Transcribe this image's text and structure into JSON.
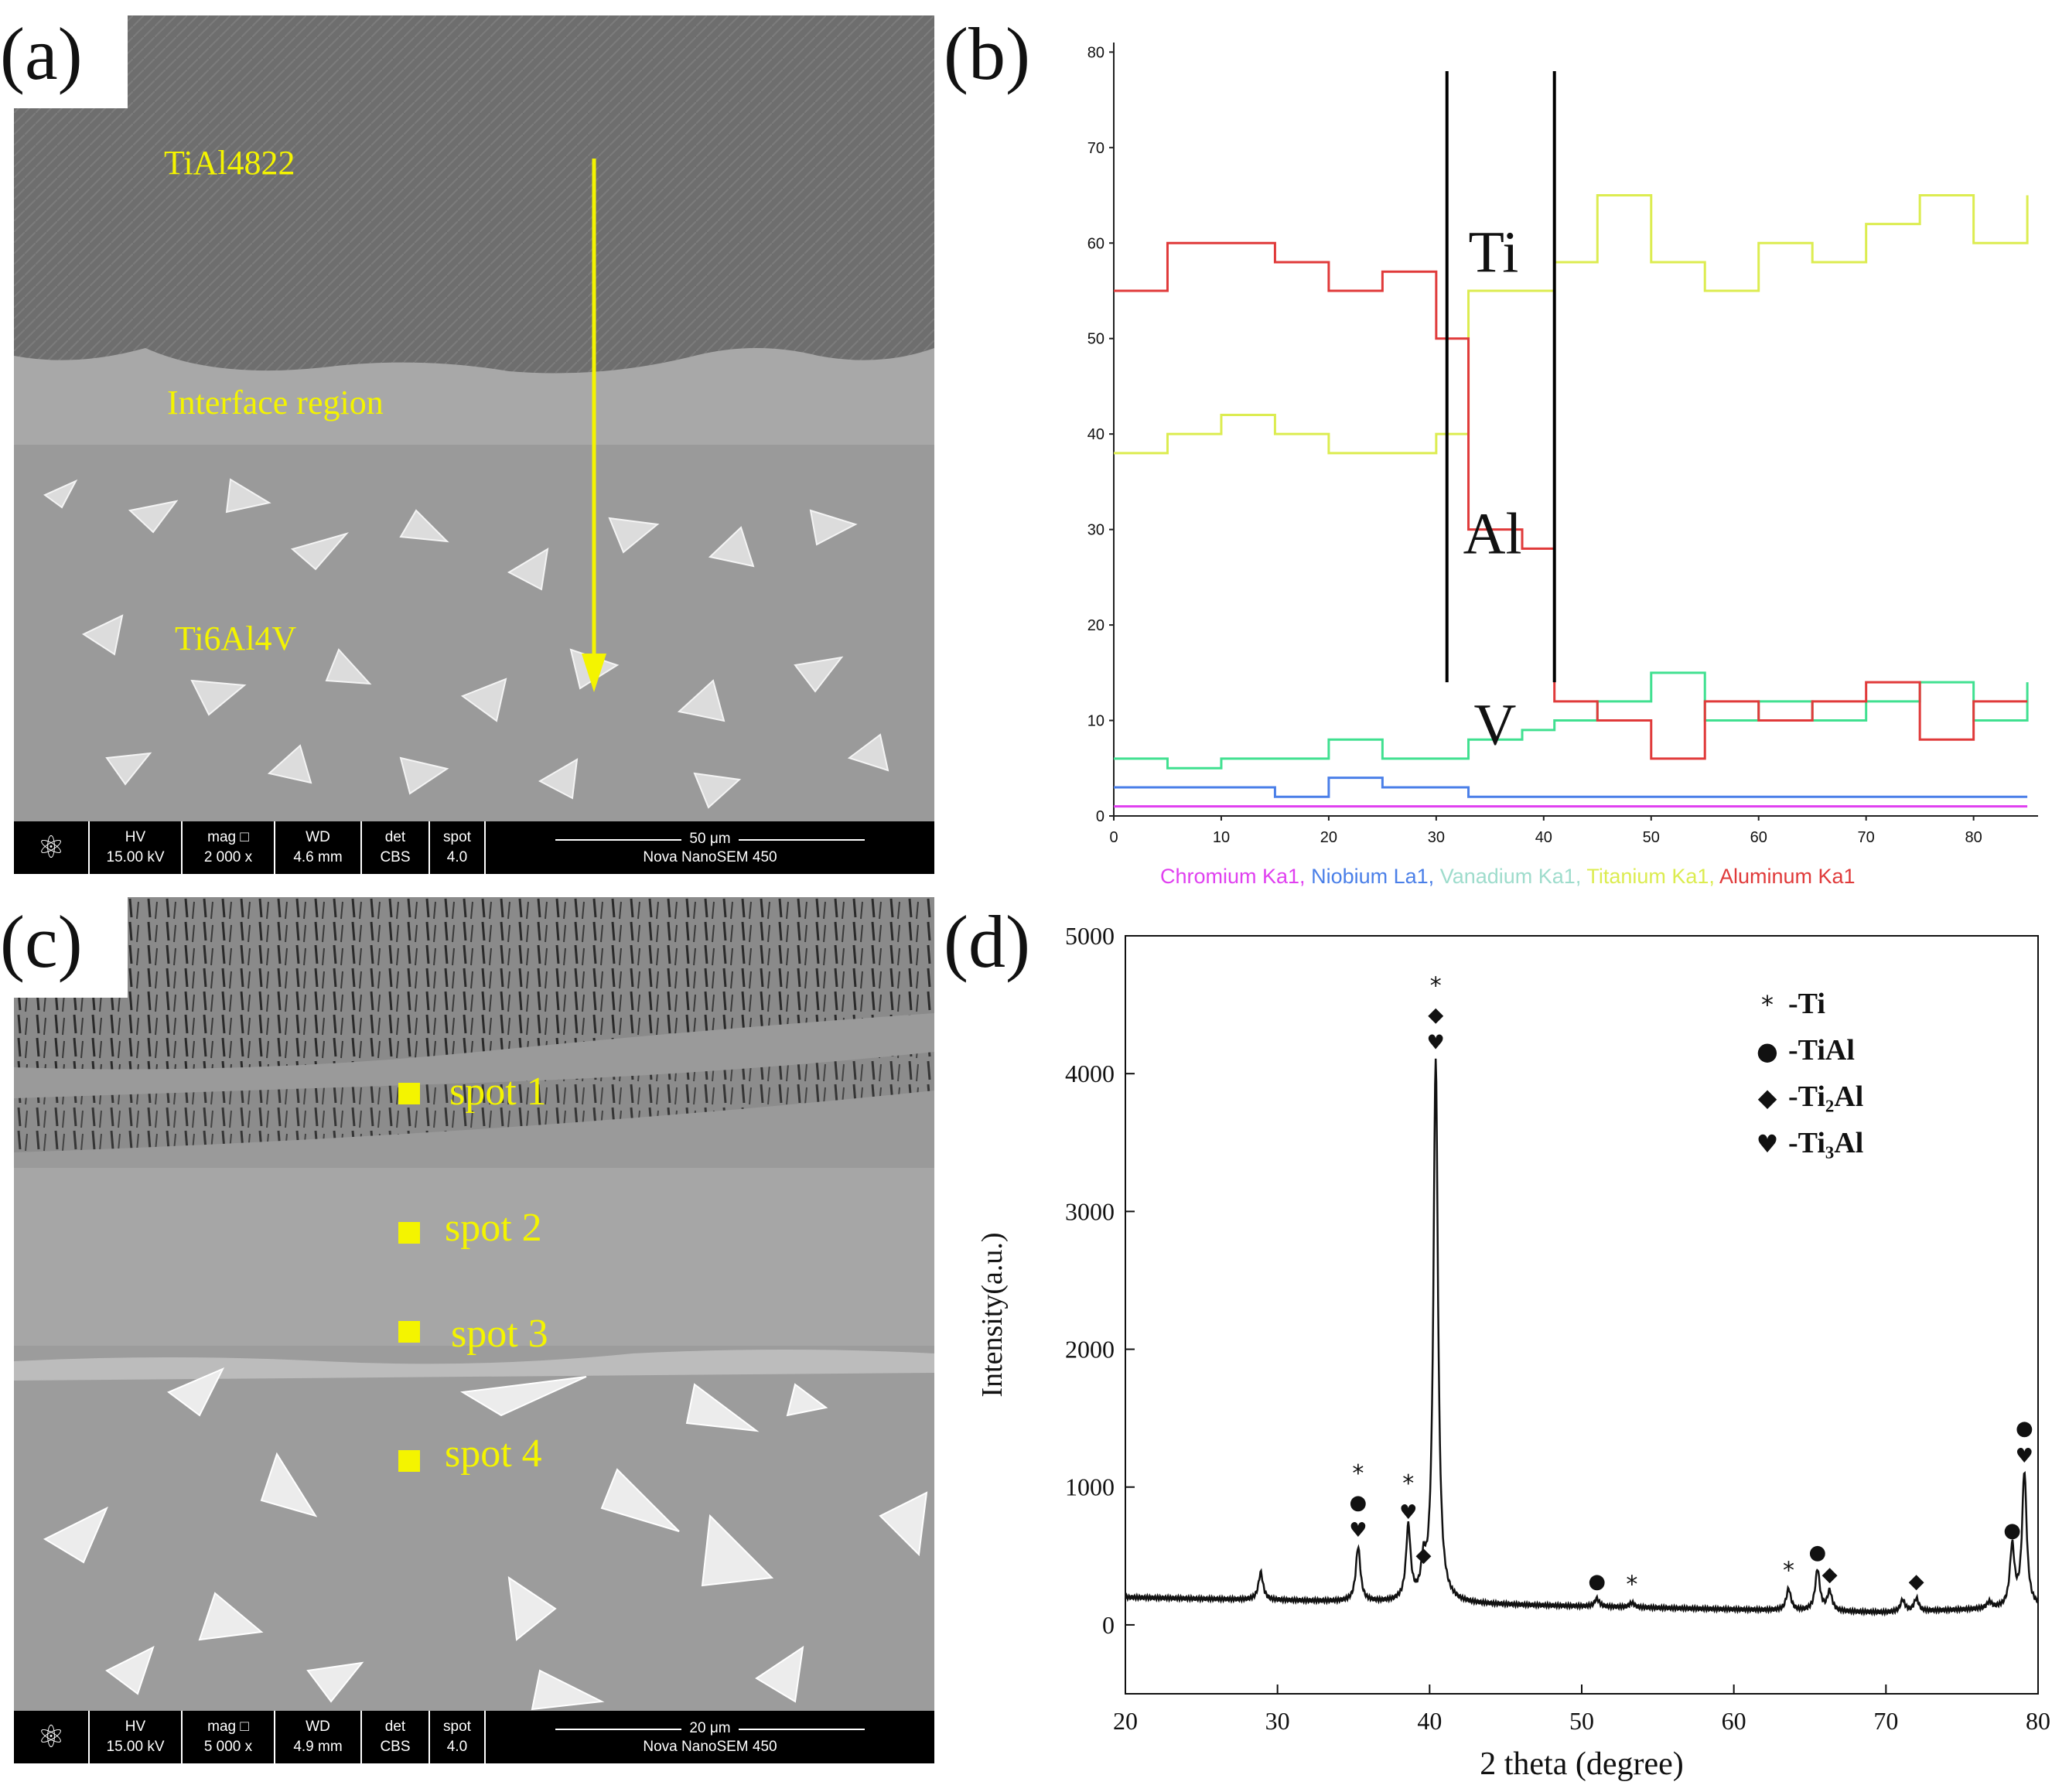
{
  "panels": {
    "a": {
      "label": "(a)",
      "annotations": {
        "top": "TiAl4822",
        "middle": "Interface region",
        "bottom": "Ti6Al4V"
      },
      "databar": {
        "hv_label": "HV",
        "hv": "15.00 kV",
        "mag_label": "mag □",
        "mag": "2 000 x",
        "wd_label": "WD",
        "wd": "4.6 mm",
        "det_label": "det",
        "det": "CBS",
        "spot_label": "spot",
        "spot": "4.0",
        "scale": "50 μm",
        "instrument": "Nova NanoSEM 450"
      }
    },
    "b": {
      "label": "(b)"
    },
    "c": {
      "label": "(c)",
      "spots": [
        "spot 1",
        "spot 2",
        "spot 3",
        "spot 4"
      ],
      "databar": {
        "hv_label": "HV",
        "hv": "15.00 kV",
        "mag_label": "mag □",
        "mag": "5 000 x",
        "wd_label": "WD",
        "wd": "4.9 mm",
        "det_label": "det",
        "det": "CBS",
        "spot_label": "spot",
        "spot": "4.0",
        "scale": "20 μm",
        "instrument": "Nova NanoSEM 450"
      }
    },
    "d": {
      "label": "(d)"
    }
  },
  "colors": {
    "annotation": "#f4f400",
    "chromium": "#e040f0",
    "niobium": "#4a7fe8",
    "vanadium": "#40e090",
    "titanium": "#dcec50",
    "aluminum": "#e03a3a"
  },
  "chart_data": [
    {
      "type": "line",
      "panel": "b",
      "x_ticks": [
        "0",
        "10",
        "20",
        "30",
        "40",
        "50",
        "60",
        "70",
        "80"
      ],
      "y_ticks": [
        "0",
        "10",
        "20",
        "30",
        "40",
        "50",
        "60",
        "70",
        "80"
      ],
      "xlim": [
        0,
        86
      ],
      "ylim": [
        0,
        81
      ],
      "markers_x": [
        31,
        41
      ],
      "inline_labels": {
        "ti": "Ti",
        "al": "Al",
        "v": "V"
      },
      "legend": {
        "chromium": "Chromium Ka1,",
        "niobium": "Niobium La1,",
        "vanadium": "Vanadium Ka1,",
        "titanium": "Titanium Ka1,",
        "aluminum": "Aluminum Ka1"
      },
      "series": [
        {
          "name": "Aluminum Ka1",
          "x": [
            0,
            5,
            10,
            15,
            20,
            25,
            30,
            33,
            38,
            41,
            45,
            50,
            55,
            60,
            65,
            70,
            75,
            80,
            85
          ],
          "values": [
            55,
            60,
            60,
            58,
            55,
            57,
            50,
            30,
            28,
            12,
            10,
            6,
            12,
            10,
            12,
            14,
            8,
            12,
            12
          ]
        },
        {
          "name": "Titanium Ka1",
          "x": [
            0,
            5,
            10,
            15,
            20,
            25,
            30,
            33,
            38,
            41,
            45,
            50,
            55,
            60,
            65,
            70,
            75,
            80,
            85
          ],
          "values": [
            38,
            40,
            42,
            40,
            38,
            38,
            40,
            55,
            55,
            58,
            65,
            58,
            55,
            60,
            58,
            62,
            65,
            60,
            65
          ]
        },
        {
          "name": "Vanadium Ka1",
          "x": [
            0,
            5,
            10,
            15,
            20,
            25,
            30,
            33,
            38,
            41,
            45,
            50,
            55,
            60,
            65,
            70,
            75,
            80,
            85
          ],
          "values": [
            6,
            5,
            6,
            6,
            8,
            6,
            6,
            8,
            9,
            10,
            12,
            15,
            10,
            12,
            10,
            12,
            14,
            10,
            14
          ]
        },
        {
          "name": "Niobium La1",
          "x": [
            0,
            5,
            10,
            15,
            20,
            25,
            30,
            33,
            38,
            41,
            45,
            50,
            55,
            60,
            65,
            70,
            75,
            80,
            85
          ],
          "values": [
            3,
            3,
            3,
            2,
            4,
            3,
            3,
            2,
            2,
            2,
            2,
            2,
            2,
            2,
            2,
            2,
            2,
            2,
            2
          ]
        },
        {
          "name": "Chromium Ka1",
          "x": [
            0,
            5,
            10,
            15,
            20,
            25,
            30,
            33,
            38,
            41,
            45,
            50,
            55,
            60,
            65,
            70,
            75,
            80,
            85
          ],
          "values": [
            1,
            1,
            1,
            1,
            1,
            1,
            1,
            1,
            1,
            1,
            1,
            1,
            1,
            1,
            1,
            1,
            1,
            1,
            1
          ]
        }
      ]
    },
    {
      "type": "line",
      "panel": "d",
      "xlabel": "2 theta (degree)",
      "ylabel": "Intensity(a.u.)",
      "xlim": [
        20,
        80
      ],
      "ylim": [
        -500,
        5000
      ],
      "x_ticks": [
        "20",
        "30",
        "40",
        "50",
        "60",
        "70",
        "80"
      ],
      "y_ticks": [
        "0",
        "1000",
        "2000",
        "3000",
        "4000",
        "5000"
      ],
      "legend": [
        {
          "symbol": "*",
          "label": "-Ti"
        },
        {
          "symbol": "●",
          "label": "-TiAl"
        },
        {
          "symbol": "◆",
          "label": "-Ti₂Al"
        },
        {
          "symbol": "♥",
          "label": "-Ti₃Al"
        }
      ],
      "peaks": [
        {
          "x": 28.9,
          "y": 380,
          "symbols": ""
        },
        {
          "x": 35.3,
          "y": 560,
          "symbols": "*●♥"
        },
        {
          "x": 38.6,
          "y": 690,
          "symbols": "*♥"
        },
        {
          "x": 39.6,
          "y": 380,
          "symbols": "◆"
        },
        {
          "x": 40.4,
          "y": 4100,
          "symbols": "*◆♥"
        },
        {
          "x": 51.0,
          "y": 190,
          "symbols": "●"
        },
        {
          "x": 53.3,
          "y": 160,
          "symbols": "*"
        },
        {
          "x": 63.6,
          "y": 260,
          "symbols": "*"
        },
        {
          "x": 65.5,
          "y": 400,
          "symbols": "●"
        },
        {
          "x": 66.3,
          "y": 240,
          "symbols": "◆"
        },
        {
          "x": 71.1,
          "y": 180,
          "symbols": ""
        },
        {
          "x": 72.0,
          "y": 190,
          "symbols": "◆"
        },
        {
          "x": 76.8,
          "y": 160,
          "symbols": ""
        },
        {
          "x": 78.3,
          "y": 560,
          "symbols": "●"
        },
        {
          "x": 79.1,
          "y": 1100,
          "symbols": "●♥"
        }
      ]
    }
  ]
}
